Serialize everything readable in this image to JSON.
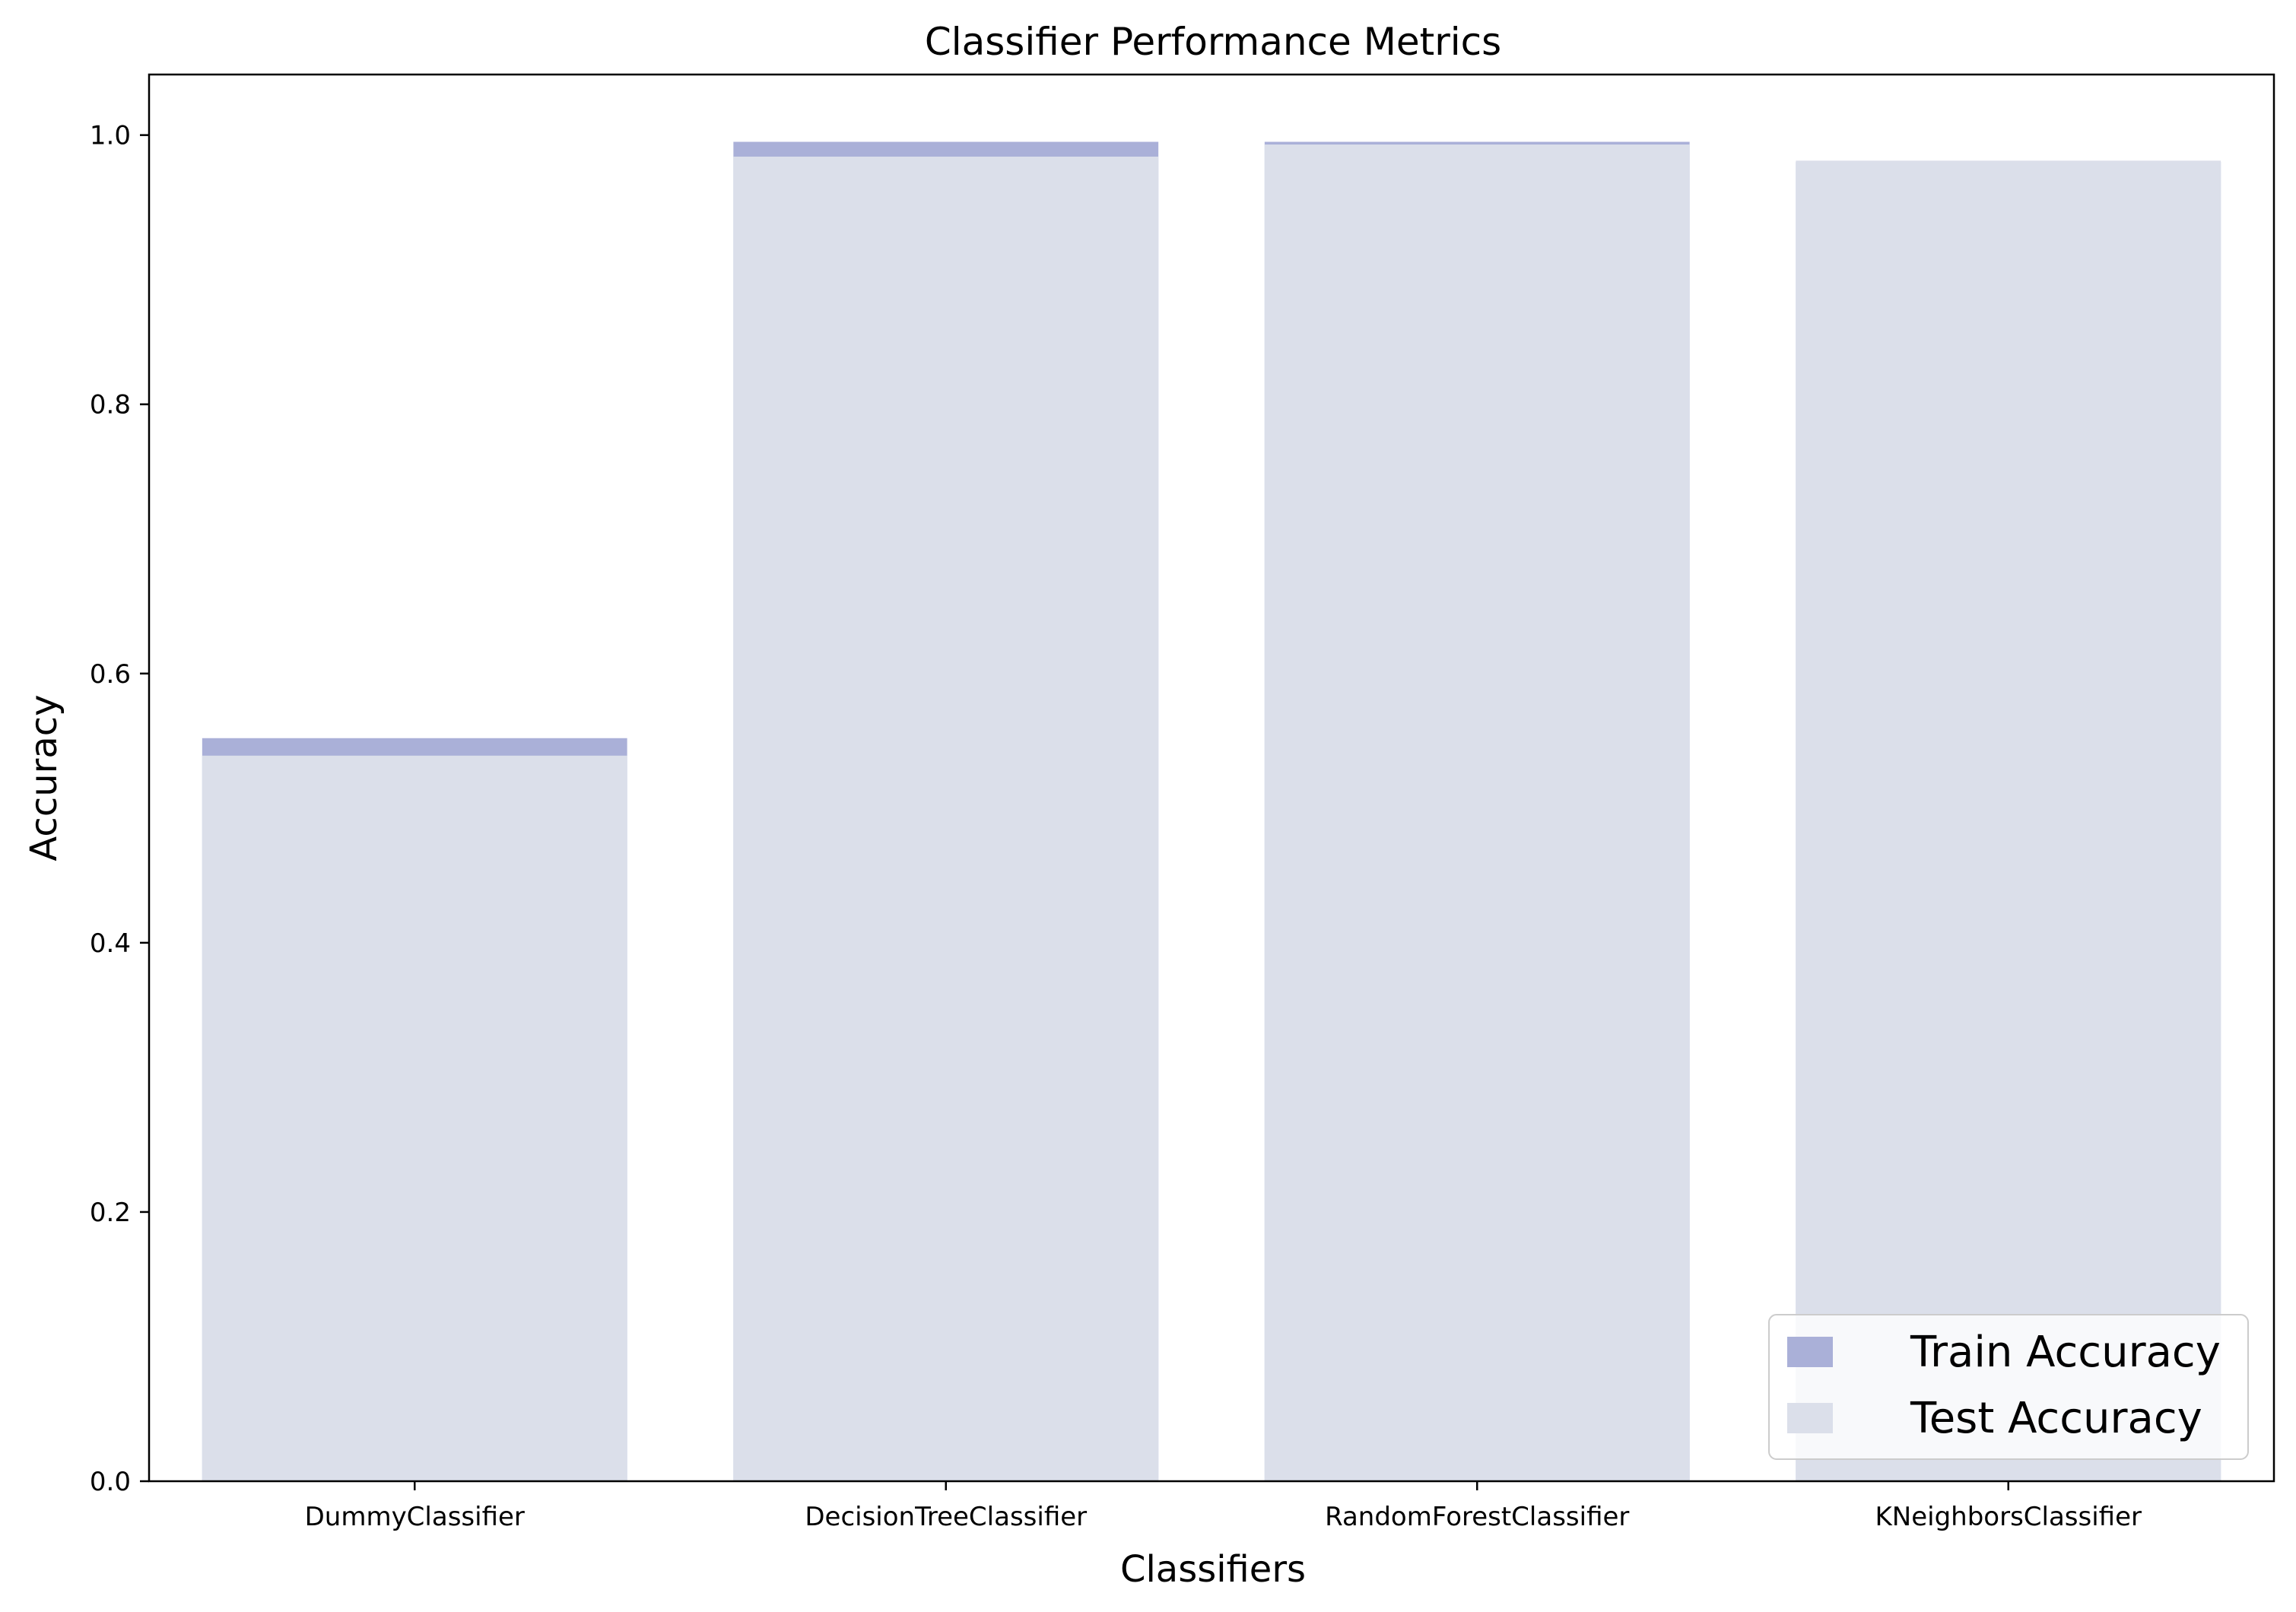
{
  "chart_data": {
    "type": "bar",
    "title": "Classifier Performance Metrics",
    "xlabel": "Classifiers",
    "ylabel": "Accuracy",
    "categories": [
      "DummyClassifier",
      "DecisionTreeClassifier",
      "RandomForestClassifier",
      "KNeighborsClassifier"
    ],
    "series": [
      {
        "name": "Train Accuracy",
        "color": "#aab0d8",
        "values": [
          0.552,
          0.995,
          0.995,
          0.98
        ]
      },
      {
        "name": "Test Accuracy",
        "color": "#dbdfea",
        "values": [
          0.539,
          0.984,
          0.993,
          0.981
        ]
      }
    ],
    "ylim": [
      0,
      1.045
    ],
    "yticks": [
      "0.0",
      "0.2",
      "0.4",
      "0.6",
      "0.8",
      "1.0"
    ],
    "grid": false,
    "legend_position": "lower-right",
    "bar_overlay": true
  }
}
